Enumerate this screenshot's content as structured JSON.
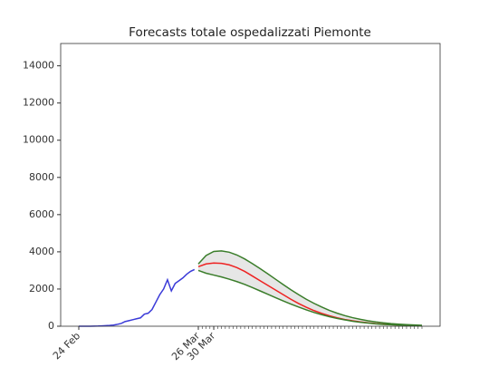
{
  "chart_data": {
    "type": "line",
    "title": "Forecasts totale ospedalizzati Piemonte",
    "xlim": [
      -4.7,
      93.7
    ],
    "ylim": [
      0,
      15200
    ],
    "xticks": [
      {
        "value": 0,
        "label": "24 Feb"
      },
      {
        "value": 31,
        "label": "26 Mar"
      },
      {
        "value": 35,
        "label": "30 Mar"
      }
    ],
    "xminorticks": [
      31,
      32,
      33,
      34,
      35,
      36,
      37,
      38,
      39,
      40,
      41,
      42,
      43,
      44,
      45,
      46,
      47,
      48,
      49,
      50,
      51,
      52,
      53,
      54,
      55,
      56,
      57,
      58,
      59,
      60,
      61,
      62,
      63,
      64,
      65,
      66,
      67,
      68,
      69,
      70,
      71,
      72,
      73,
      74,
      75,
      76,
      77,
      78,
      79,
      80,
      81,
      82,
      83,
      84,
      85,
      86,
      87,
      88,
      89
    ],
    "yticks": [
      0,
      2000,
      4000,
      6000,
      8000,
      10000,
      12000,
      14000
    ],
    "band_color": "#e6e6e6",
    "series": [
      {
        "color": "#3a3ad8",
        "x": [
          0,
          1,
          2,
          3,
          4,
          5,
          6,
          7,
          8,
          9,
          10,
          11,
          12,
          13,
          14,
          15,
          16,
          17,
          18,
          19,
          20,
          21,
          22,
          23,
          24,
          25,
          26,
          27,
          28,
          29,
          30
        ],
        "values": [
          0,
          0,
          0,
          0,
          5,
          10,
          20,
          30,
          40,
          60,
          100,
          150,
          250,
          300,
          350,
          400,
          450,
          650,
          700,
          900,
          1300,
          1700,
          2000,
          2500,
          1900,
          2300,
          2450,
          2600,
          2800,
          2950,
          3050
        ]
      },
      {
        "color": "#ee2222",
        "x": [
          31,
          33,
          35,
          37,
          39,
          41,
          43,
          45,
          47,
          49,
          51,
          53,
          55,
          57,
          59,
          61,
          63,
          65,
          67,
          69,
          71,
          73,
          75,
          77,
          79,
          81,
          83,
          85,
          87,
          89
        ],
        "values": [
          3200,
          3350,
          3400,
          3380,
          3300,
          3150,
          2950,
          2700,
          2450,
          2200,
          1950,
          1700,
          1450,
          1220,
          1020,
          840,
          690,
          560,
          450,
          360,
          290,
          230,
          180,
          140,
          110,
          85,
          65,
          50,
          40,
          30
        ]
      },
      {
        "color": "#3a7d2a",
        "x": [
          31,
          33,
          35,
          37,
          39,
          41,
          43,
          45,
          47,
          49,
          51,
          53,
          55,
          57,
          59,
          61,
          63,
          65,
          67,
          69,
          71,
          73,
          75,
          77,
          79,
          81,
          83,
          85,
          87,
          89
        ],
        "values": [
          3350,
          3800,
          4020,
          4050,
          3980,
          3830,
          3620,
          3370,
          3100,
          2820,
          2530,
          2240,
          1960,
          1700,
          1450,
          1230,
          1030,
          850,
          700,
          570,
          460,
          370,
          290,
          230,
          180,
          140,
          110,
          85,
          65,
          50
        ]
      },
      {
        "color": "#3a7d2a",
        "x": [
          31,
          33,
          35,
          37,
          39,
          41,
          43,
          45,
          47,
          49,
          51,
          53,
          55,
          57,
          59,
          61,
          63,
          65,
          67,
          69,
          71,
          73,
          75,
          77,
          79,
          81,
          83,
          85,
          87,
          89
        ],
        "values": [
          3000,
          2850,
          2750,
          2650,
          2530,
          2400,
          2250,
          2080,
          1900,
          1720,
          1540,
          1360,
          1190,
          1030,
          880,
          740,
          620,
          510,
          420,
          340,
          270,
          215,
          170,
          130,
          100,
          78,
          60,
          45,
          35,
          25
        ]
      }
    ]
  }
}
